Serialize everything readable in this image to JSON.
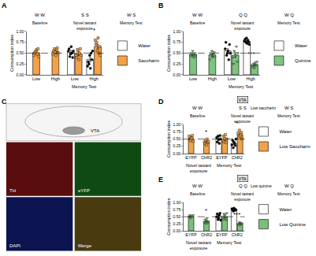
{
  "chart_data": [
    {
      "panel": "A",
      "type": "bar",
      "ylabel": "Consumption index",
      "ylim": [
        0,
        1
      ],
      "yticks": [
        {
          "value": 0,
          "label": "0.00"
        },
        {
          "value": 0.25,
          "label": "0.25"
        },
        {
          "value": 0.5,
          "label": "0.50"
        },
        {
          "value": 0.75,
          "label": "0.75"
        },
        {
          "value": 1,
          "label": "1.00"
        }
      ],
      "grid": false,
      "legend": "right",
      "reference_line": 0.5,
      "categories": [
        "Low",
        "High",
        "Low",
        "High"
      ],
      "groups": [
        {
          "label": "Memory Test",
          "span": [
            2,
            3
          ]
        }
      ],
      "headers": [
        {
          "label": "Baseline",
          "tastes": "W W"
        },
        {
          "label": "Novel tastant exposure",
          "tastes": "S S"
        },
        {
          "label": "Memory Test",
          "tastes": "W S"
        }
      ],
      "series": [
        {
          "name": "Water",
          "color": "#ffffff",
          "marker": "circle",
          "values": [
            null,
            null,
            0.52,
            0.35
          ],
          "errors": [
            null,
            null,
            0.04,
            0.05
          ],
          "points": [
            [],
            [],
            [
              0.55,
              0.6,
              0.42,
              0.48,
              0.65,
              0.5,
              0.4,
              0.55
            ],
            [
              0.2,
              0.3,
              0.25,
              0.45,
              0.15,
              0.5,
              0.35,
              0.55
            ]
          ]
        },
        {
          "name": "Saccharin",
          "color": "#f4a24a",
          "marker": "square",
          "values": [
            0.51,
            0.54,
            0.48,
            0.65
          ],
          "errors": [
            0.02,
            0.03,
            0.04,
            0.05
          ],
          "points": [
            [
              0.45,
              0.5,
              0.52,
              0.55,
              0.58,
              0.48,
              0.6,
              0.42
            ],
            [
              0.48,
              0.55,
              0.6,
              0.52,
              0.45,
              0.58,
              0.62,
              0.5
            ],
            [
              0.45,
              0.4,
              0.58,
              0.52,
              0.35,
              0.5,
              0.6,
              0.45
            ],
            [
              0.8,
              0.7,
              0.75,
              0.55,
              0.85,
              0.5,
              0.65,
              0.45
            ]
          ]
        }
      ],
      "annotations": [
        {
          "text": "*",
          "x": 3,
          "y": 0.9
        }
      ]
    },
    {
      "panel": "B",
      "type": "bar",
      "ylabel": "Consumption index",
      "ylim": [
        0,
        1
      ],
      "yticks": [
        {
          "value": 0,
          "label": "0.00"
        },
        {
          "value": 0.25,
          "label": "0.25"
        },
        {
          "value": 0.5,
          "label": "0.50"
        },
        {
          "value": 0.75,
          "label": "0.75"
        },
        {
          "value": 1,
          "label": "1.00"
        }
      ],
      "grid": false,
      "legend": "right",
      "reference_line": 0.5,
      "categories": [
        "Low",
        "High",
        "Low",
        "High"
      ],
      "groups": [
        {
          "label": "Memory Test",
          "span": [
            2,
            3
          ]
        }
      ],
      "headers": [
        {
          "label": "Baseline",
          "tastes": "W W"
        },
        {
          "label": "Novel tastant exposure",
          "tastes": "Q Q"
        },
        {
          "label": "Memory Test",
          "tastes": "W Q"
        }
      ],
      "series": [
        {
          "name": "Water",
          "color": "#ffffff",
          "marker": "circle",
          "values": [
            null,
            null,
            0.55,
            0.77
          ],
          "errors": [
            null,
            null,
            0.05,
            0.02
          ],
          "points": [
            [],
            [],
            [
              0.6,
              0.75,
              0.45,
              0.5,
              0.55,
              0.35,
              0.7,
              0.5
            ],
            [
              0.78,
              0.82,
              0.75,
              0.85,
              0.72,
              0.8,
              0.76,
              0.7
            ]
          ]
        },
        {
          "name": "Quinine",
          "color": "#7cc47f",
          "marker": "triangle-down",
          "values": [
            0.47,
            0.46,
            0.45,
            0.23
          ],
          "errors": [
            0.02,
            0.03,
            0.05,
            0.02
          ],
          "points": [
            [
              0.45,
              0.5,
              0.42,
              0.55,
              0.48,
              0.4,
              0.5,
              0.44
            ],
            [
              0.35,
              0.5,
              0.45,
              0.55,
              0.4,
              0.48,
              0.52,
              0.42
            ],
            [
              0.4,
              0.25,
              0.55,
              0.5,
              0.45,
              0.65,
              0.3,
              0.5
            ],
            [
              0.22,
              0.18,
              0.25,
              0.15,
              0.28,
              0.2,
              0.24,
              0.3
            ]
          ]
        }
      ],
      "annotations": [
        {
          "text": "***",
          "x": 3,
          "y": 0.36
        }
      ]
    },
    {
      "panel": "C",
      "type": "image",
      "region": "VTA",
      "channels": [
        "TH",
        "eYFP",
        "DAPI",
        "Merge"
      ],
      "colors": [
        "#5a0d0d",
        "#0f4a12",
        "#0b1450",
        "#4a3a10"
      ]
    },
    {
      "panel": "D",
      "type": "bar",
      "ylabel": "Consumption index",
      "ylim": [
        0,
        1
      ],
      "yticks": [
        {
          "value": 0,
          "label": "0.00"
        },
        {
          "value": 0.25,
          "label": "0.25"
        },
        {
          "value": 0.5,
          "label": "0.50"
        },
        {
          "value": 0.75,
          "label": "0.75"
        },
        {
          "value": 1,
          "label": "1.00"
        }
      ],
      "grid": false,
      "legend": "right",
      "reference_line": 0.5,
      "region": "VTA",
      "categories": [
        "EYFP",
        "ChR2",
        "EYFP",
        "ChR2"
      ],
      "groups": [
        {
          "label": "Novel tastant exposure",
          "span": [
            0,
            1
          ]
        },
        {
          "label": "Memory Test",
          "span": [
            2,
            3
          ]
        }
      ],
      "headers": [
        {
          "label": "Baseline",
          "tastes": "W W"
        },
        {
          "label": "Novel tastant exposure",
          "tastes": "S S",
          "note": "Low saccharin"
        },
        {
          "label": "Memory Test",
          "tastes": "W S"
        }
      ],
      "series": [
        {
          "name": "Water",
          "color": "#ffffff",
          "marker": "circle",
          "values": [
            null,
            null,
            0.5,
            0.35
          ],
          "errors": [
            null,
            null,
            0.04,
            0.04
          ],
          "points": [
            [],
            [],
            [
              0.55,
              0.4,
              0.6,
              0.48,
              0.35,
              0.62,
              0.5
            ],
            [
              0.3,
              0.45,
              0.2,
              0.4,
              0.35,
              0.28,
              0.5
            ]
          ]
        },
        {
          "name": "Low Saccharin",
          "color": "#f0a34a",
          "marker": "square",
          "values": [
            0.52,
            0.4,
            0.5,
            0.65
          ],
          "errors": [
            0.03,
            0.03,
            0.04,
            0.04
          ],
          "points": [
            [
              0.6,
              0.5,
              0.45,
              0.55,
              0.52,
              0.62,
              0.42
            ],
            [
              0.4,
              0.35,
              0.45,
              0.3,
              0.5,
              0.38,
              0.42
            ],
            [
              0.45,
              0.6,
              0.4,
              0.52,
              0.65,
              0.38,
              0.5
            ],
            [
              0.7,
              0.55,
              0.8,
              0.6,
              0.65,
              0.72,
              0.5
            ]
          ]
        }
      ],
      "annotations": [
        {
          "text": "*",
          "x": 1,
          "y": 0.56
        },
        {
          "text": "*",
          "x": 3,
          "y": 0.86
        }
      ]
    },
    {
      "panel": "E",
      "type": "bar",
      "ylabel": "Consumption index",
      "ylim": [
        0,
        1
      ],
      "yticks": [
        {
          "value": 0,
          "label": "0.00"
        },
        {
          "value": 0.25,
          "label": "0.25"
        },
        {
          "value": 0.5,
          "label": "0.50"
        },
        {
          "value": 0.75,
          "label": "0.75"
        },
        {
          "value": 1,
          "label": "1.00"
        }
      ],
      "grid": false,
      "legend": "right",
      "reference_line": 0.5,
      "region": "VTA",
      "categories": [
        "EYFP",
        "ChR2",
        "EYFP",
        "ChR2"
      ],
      "groups": [
        {
          "label": "Novel tastant exposure",
          "span": [
            0,
            1
          ]
        },
        {
          "label": "Memory Test",
          "span": [
            2,
            3
          ]
        }
      ],
      "headers": [
        {
          "label": "Baseline",
          "tastes": "W W"
        },
        {
          "label": "Novel tastant exposure",
          "tastes": "Q Q",
          "note": "Low quinine"
        },
        {
          "label": "Memory Test",
          "tastes": "W Q"
        }
      ],
      "series": [
        {
          "name": "Water",
          "color": "#ffffff",
          "marker": "circle",
          "values": [
            null,
            null,
            0.5,
            0.75
          ],
          "errors": [
            null,
            null,
            0.04,
            0.02
          ],
          "points": [
            [],
            [],
            [
              0.5,
              0.6,
              0.4,
              0.45,
              0.55,
              0.62,
              0.38
            ],
            [
              0.78,
              0.75,
              0.7,
              0.8,
              0.72,
              0.76,
              0.74
            ]
          ]
        },
        {
          "name": "Low Quinine",
          "color": "#7dbf7a",
          "marker": "triangle-down",
          "values": [
            0.5,
            0.34,
            0.5,
            0.25
          ],
          "errors": [
            0.02,
            0.03,
            0.04,
            0.02
          ],
          "points": [
            [
              0.5,
              0.55,
              0.45,
              0.48,
              0.52,
              0.5,
              0.55
            ],
            [
              0.3,
              0.4,
              0.25,
              0.35,
              0.45,
              0.28,
              0.33
            ],
            [
              0.5,
              0.4,
              0.6,
              0.55,
              0.45,
              0.38,
              0.62
            ],
            [
              0.22,
              0.25,
              0.3,
              0.2,
              0.28,
              0.24,
              0.26
            ]
          ]
        }
      ],
      "annotations": [
        {
          "text": "*",
          "x": 1,
          "y": 0.52
        },
        {
          "text": "***",
          "x": 3,
          "y": 0.38
        }
      ]
    }
  ]
}
